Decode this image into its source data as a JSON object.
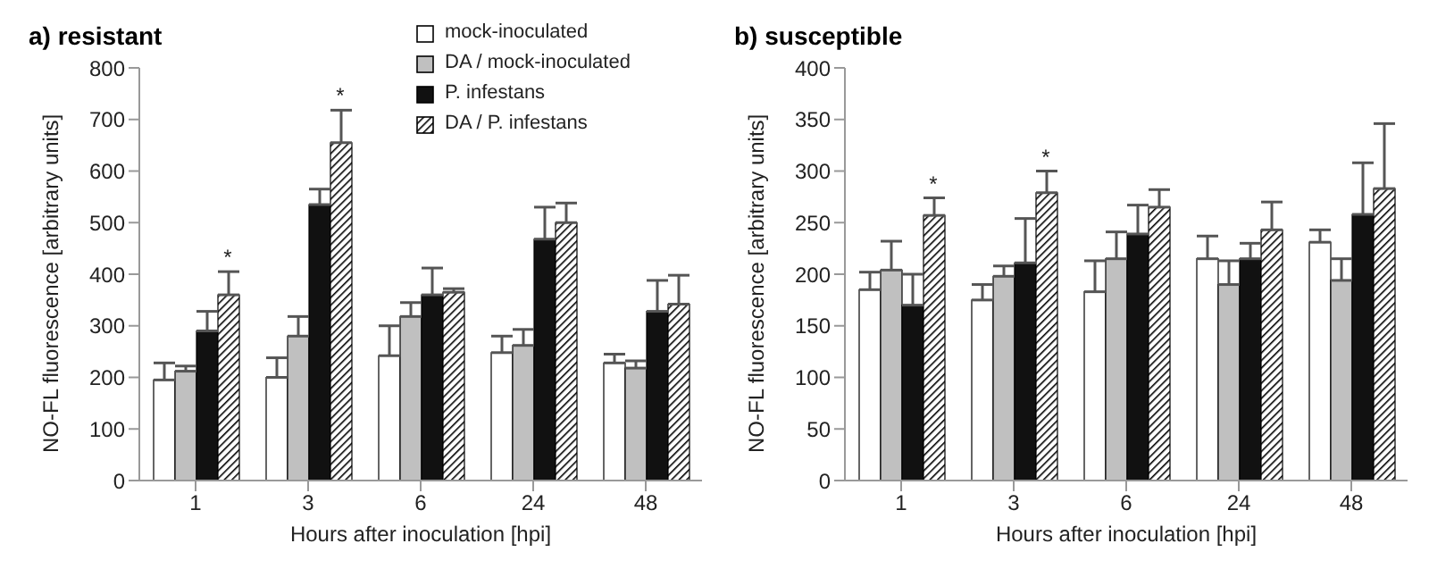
{
  "chart_data": [
    {
      "type": "bar",
      "title": "a) resistant",
      "xlabel": "Hours after inoculation [hpi]",
      "ylabel": "NO-FL fluorescence [arbitrary units]",
      "categories": [
        "1",
        "3",
        "6",
        "24",
        "48"
      ],
      "ylim": [
        0,
        800
      ],
      "yticks": [
        0,
        100,
        200,
        300,
        400,
        500,
        600,
        700,
        800
      ],
      "grid": false,
      "legend": "top",
      "series": [
        {
          "name": "mock-inoculated",
          "color": "#ffffff",
          "values": [
            195,
            200,
            242,
            248,
            228
          ],
          "errors": [
            [
              195,
              228
            ],
            [
              200,
              238
            ],
            [
              242,
              300
            ],
            [
              248,
              280
            ],
            [
              228,
              245
            ]
          ]
        },
        {
          "name": "DA / mock-inoculated",
          "color": "#c0c0c0",
          "values": [
            212,
            280,
            318,
            262,
            218
          ],
          "errors": [
            [
              212,
              222
            ],
            [
              280,
              318
            ],
            [
              318,
              345
            ],
            [
              262,
              293
            ],
            [
              218,
              232
            ]
          ]
        },
        {
          "name": "P. infestans",
          "color": "#111111",
          "values": [
            290,
            535,
            360,
            468,
            328
          ],
          "errors": [
            [
              290,
              328
            ],
            [
              535,
              565
            ],
            [
              360,
              412
            ],
            [
              468,
              530
            ],
            [
              328,
              388
            ]
          ]
        },
        {
          "name": "DA / P. infestans",
          "color": "#000000",
          "values": [
            360,
            655,
            365,
            500,
            342
          ],
          "errors": [
            [
              360,
              405
            ],
            [
              655,
              718
            ],
            [
              365,
              372
            ],
            [
              500,
              538
            ],
            [
              342,
              398
            ]
          ]
        }
      ],
      "annotations": [
        "*",
        "*"
      ]
    },
    {
      "type": "bar",
      "title": "b) susceptible",
      "xlabel": "Hours after inoculation [hpi]",
      "ylabel": "NO-FL fluorescence [arbitrary units]",
      "categories": [
        "1",
        "3",
        "6",
        "24",
        "48"
      ],
      "ylim": [
        0,
        400
      ],
      "yticks": [
        0,
        50,
        100,
        150,
        200,
        250,
        300,
        350,
        400
      ],
      "grid": false,
      "series": [
        {
          "color": "#ffffff",
          "values": [
            185,
            175,
            183,
            215,
            231
          ],
          "errors": [
            [
              185,
              202
            ],
            [
              175,
              190
            ],
            [
              183,
              213
            ],
            [
              215,
              237
            ],
            [
              231,
              243
            ]
          ]
        },
        {
          "color": "#c0c0c0",
          "values": [
            204,
            198,
            215,
            190,
            194
          ],
          "errors": [
            [
              204,
              232
            ],
            [
              198,
              208
            ],
            [
              215,
              241
            ],
            [
              190,
              213
            ],
            [
              194,
              215
            ]
          ]
        },
        {
          "color": "#111111",
          "values": [
            170,
            211,
            239,
            215,
            258
          ],
          "errors": [
            [
              170,
              200
            ],
            [
              211,
              254
            ],
            [
              239,
              267
            ],
            [
              215,
              230
            ],
            [
              258,
              308
            ]
          ]
        },
        {
          "color": "#000000",
          "values": [
            257,
            279,
            265,
            243,
            283
          ],
          "errors": [
            [
              257,
              274
            ],
            [
              279,
              300
            ],
            [
              265,
              282
            ],
            [
              243,
              270
            ],
            [
              283,
              346
            ]
          ]
        }
      ],
      "annotations": [
        "*",
        "*"
      ]
    }
  ]
}
